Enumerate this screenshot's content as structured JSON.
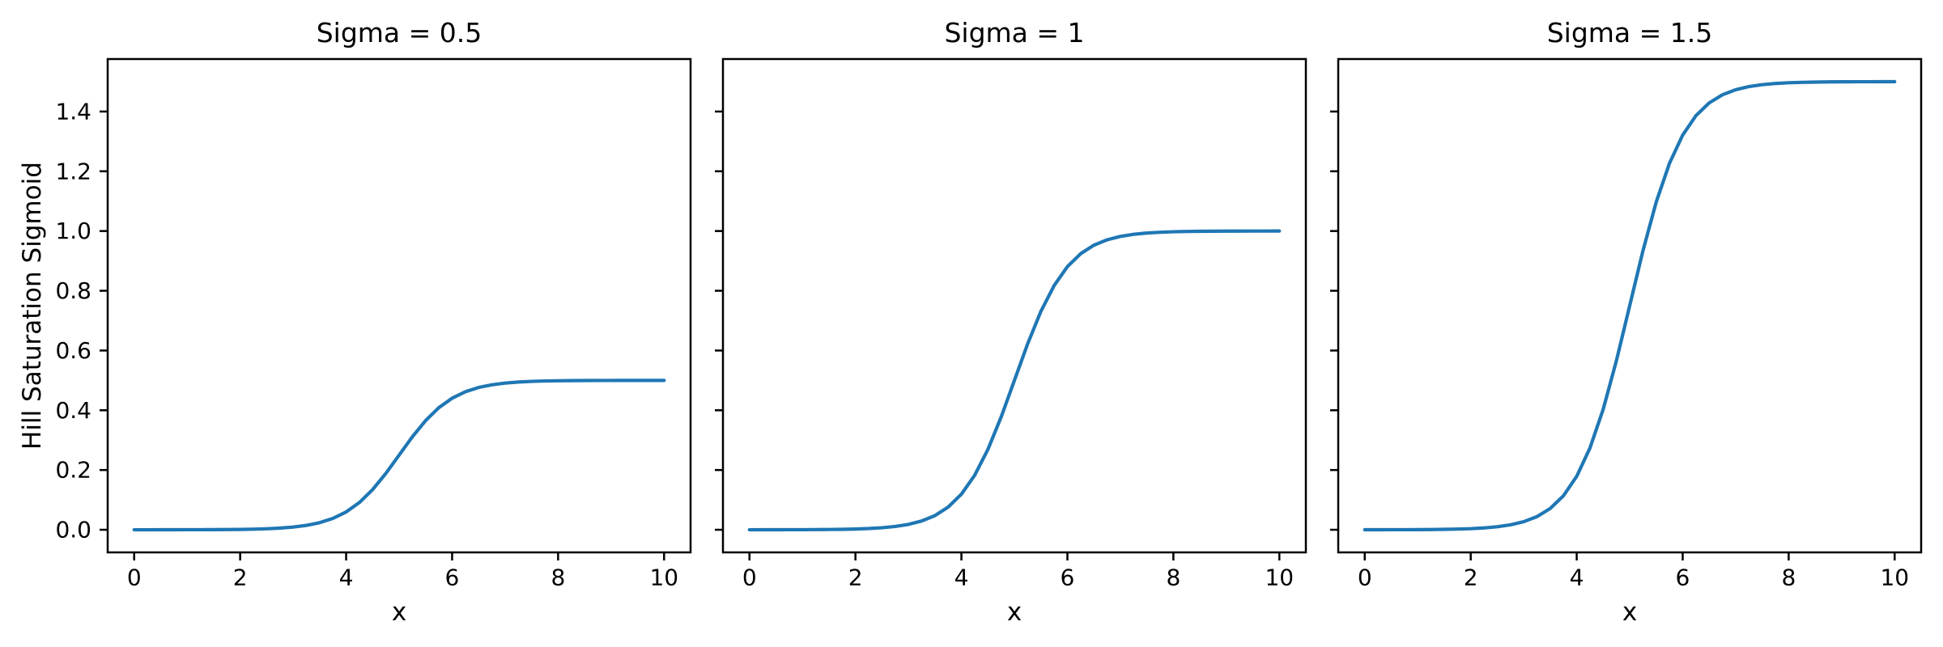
{
  "figure": {
    "background": "#ffffff",
    "text_color": "#000000",
    "axis_color": "#000000"
  },
  "chart_data": [
    {
      "type": "line",
      "title": "Sigma = 0.5",
      "sigma": 0.5,
      "xlabel": "x",
      "ylabel": "Hill Saturation Sigmoid",
      "grid": false,
      "legend": null,
      "line_color": "#1f77b4",
      "xlim": [
        -0.5,
        10.5
      ],
      "ylim": [
        -0.0757,
        1.5757
      ],
      "xticks": [
        0,
        2,
        4,
        6,
        8,
        10
      ],
      "xtick_labels": [
        "0",
        "2",
        "4",
        "6",
        "8",
        "10"
      ],
      "yticks": [
        0.0,
        0.2,
        0.4,
        0.6,
        0.8,
        1.0,
        1.2,
        1.4
      ],
      "ytick_labels": [
        "0.0",
        "0.2",
        "0.4",
        "0.6",
        "0.8",
        "1.0",
        "1.2",
        "1.4"
      ],
      "series": [
        {
          "name": "sigma=0.5",
          "x": [
            0,
            0.25,
            0.5,
            0.75,
            1,
            1.25,
            1.5,
            1.75,
            2,
            2.25,
            2.5,
            2.75,
            3,
            3.25,
            3.5,
            3.75,
            4,
            4.25,
            4.5,
            4.75,
            5,
            5.25,
            5.5,
            5.75,
            6,
            6.25,
            6.5,
            6.75,
            7,
            7.25,
            7.5,
            7.75,
            8,
            8.25,
            8.5,
            8.75,
            9,
            9.25,
            9.5,
            9.75,
            10
          ],
          "y": [
            0,
            0,
            0.0001,
            0.0001,
            0.0002,
            0.0003,
            0.0005,
            0.0008,
            0.0012,
            0.002,
            0.0033,
            0.0055,
            0.009,
            0.0147,
            0.0237,
            0.0379,
            0.0596,
            0.0912,
            0.1345,
            0.1888,
            0.25,
            0.3112,
            0.3655,
            0.4088,
            0.4404,
            0.4621,
            0.4763,
            0.4853,
            0.491,
            0.4945,
            0.4967,
            0.498,
            0.4988,
            0.4993,
            0.4995,
            0.4997,
            0.4998,
            0.4999,
            0.4999,
            0.5,
            0.5
          ]
        }
      ]
    },
    {
      "type": "line",
      "title": "Sigma = 1",
      "sigma": 1,
      "xlabel": "x",
      "ylabel": "",
      "grid": false,
      "legend": null,
      "line_color": "#1f77b4",
      "xlim": [
        -0.5,
        10.5
      ],
      "ylim": [
        -0.0757,
        1.5757
      ],
      "xticks": [
        0,
        2,
        4,
        6,
        8,
        10
      ],
      "xtick_labels": [
        "0",
        "2",
        "4",
        "6",
        "8",
        "10"
      ],
      "yticks": [
        0.0,
        0.2,
        0.4,
        0.6,
        0.8,
        1.0,
        1.2,
        1.4
      ],
      "ytick_labels": [],
      "series": [
        {
          "name": "sigma=1",
          "x": [
            0,
            0.25,
            0.5,
            0.75,
            1,
            1.25,
            1.5,
            1.75,
            2,
            2.25,
            2.5,
            2.75,
            3,
            3.25,
            3.5,
            3.75,
            4,
            4.25,
            4.5,
            4.75,
            5,
            5.25,
            5.5,
            5.75,
            6,
            6.25,
            6.5,
            6.75,
            7,
            7.25,
            7.5,
            7.75,
            8,
            8.25,
            8.5,
            8.75,
            9,
            9.25,
            9.5,
            9.75,
            10
          ],
          "y": [
            0,
            0.0001,
            0.0001,
            0.0002,
            0.0003,
            0.0006,
            0.0009,
            0.0015,
            0.0025,
            0.0041,
            0.0067,
            0.011,
            0.018,
            0.0293,
            0.0474,
            0.0759,
            0.1192,
            0.1824,
            0.2689,
            0.3775,
            0.5,
            0.6225,
            0.7311,
            0.8176,
            0.8808,
            0.9241,
            0.9526,
            0.9707,
            0.982,
            0.989,
            0.9933,
            0.9959,
            0.9975,
            0.9985,
            0.9991,
            0.9994,
            0.9997,
            0.9998,
            0.9999,
            0.9999,
            1
          ]
        }
      ]
    },
    {
      "type": "line",
      "title": "Sigma = 1.5",
      "sigma": 1.5,
      "xlabel": "x",
      "ylabel": "",
      "grid": false,
      "legend": null,
      "line_color": "#1f77b4",
      "xlim": [
        -0.5,
        10.5
      ],
      "ylim": [
        -0.0757,
        1.5757
      ],
      "xticks": [
        0,
        2,
        4,
        6,
        8,
        10
      ],
      "xtick_labels": [
        "0",
        "2",
        "4",
        "6",
        "8",
        "10"
      ],
      "yticks": [
        0.0,
        0.2,
        0.4,
        0.6,
        0.8,
        1.0,
        1.2,
        1.4
      ],
      "ytick_labels": [],
      "series": [
        {
          "name": "sigma=1.5",
          "x": [
            0,
            0.25,
            0.5,
            0.75,
            1,
            1.25,
            1.5,
            1.75,
            2,
            2.25,
            2.5,
            2.75,
            3,
            3.25,
            3.5,
            3.75,
            4,
            4.25,
            4.5,
            4.75,
            5,
            5.25,
            5.5,
            5.75,
            6,
            6.25,
            6.5,
            6.75,
            7,
            7.25,
            7.5,
            7.75,
            8,
            8.25,
            8.5,
            8.75,
            9,
            9.25,
            9.5,
            9.75,
            10
          ],
          "y": [
            0.0001,
            0.0001,
            0.0002,
            0.0003,
            0.0005,
            0.0008,
            0.0014,
            0.0023,
            0.0037,
            0.0061,
            0.01,
            0.0165,
            0.027,
            0.044,
            0.0711,
            0.1138,
            0.1788,
            0.2736,
            0.4034,
            0.5663,
            0.75,
            0.9337,
            1.0966,
            1.2264,
            1.3212,
            1.3862,
            1.4289,
            1.456,
            1.473,
            1.4835,
            1.49,
            1.4939,
            1.4963,
            1.4977,
            1.4986,
            1.4992,
            1.4995,
            1.4997,
            1.4998,
            1.4999,
            1.4999
          ]
        }
      ]
    }
  ]
}
